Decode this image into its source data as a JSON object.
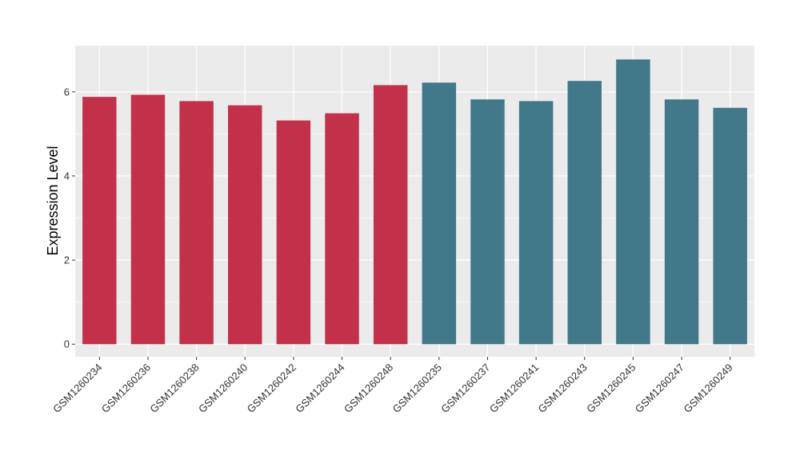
{
  "chart_data": {
    "type": "bar",
    "title": "",
    "xlabel": "",
    "ylabel": "Expression Level",
    "ylim": [
      -0.3,
      7.1
    ],
    "yticks": [
      0,
      2,
      4,
      6
    ],
    "grid": true,
    "legend": "none",
    "colors": {
      "group1": "#C3304A",
      "group2": "#41788A",
      "panel": "#EBEBEB",
      "grid": "#FFFFFF"
    },
    "categories": [
      "GSM1260234",
      "GSM1260236",
      "GSM1260238",
      "GSM1260240",
      "GSM1260242",
      "GSM1260244",
      "GSM1260248",
      "GSM1260235",
      "GSM1260237",
      "GSM1260241",
      "GSM1260243",
      "GSM1260245",
      "GSM1260247",
      "GSM1260249"
    ],
    "values": [
      5.88,
      5.93,
      5.78,
      5.68,
      5.32,
      5.49,
      6.16,
      6.22,
      5.82,
      5.78,
      6.26,
      6.77,
      5.82,
      5.62
    ],
    "groups": [
      1,
      1,
      1,
      1,
      1,
      1,
      1,
      2,
      2,
      2,
      2,
      2,
      2,
      2
    ]
  }
}
